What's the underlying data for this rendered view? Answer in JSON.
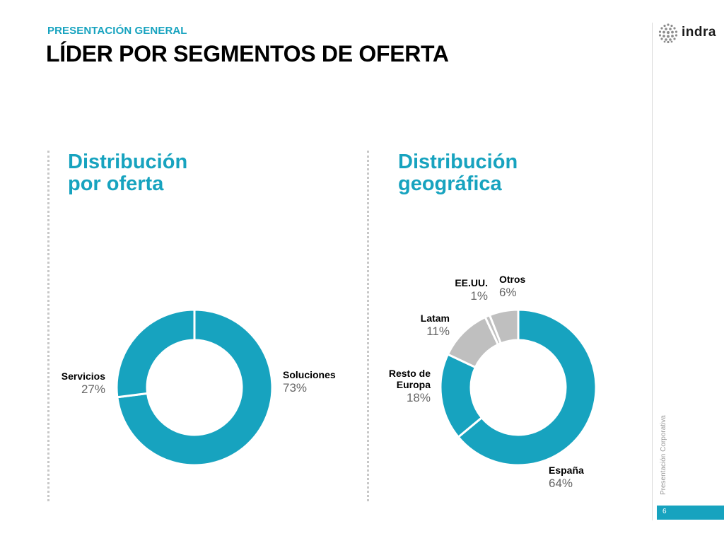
{
  "header": {
    "eyebrow": "PRESENTACIÓN GENERAL",
    "title": "LÍDER POR SEGMENTOS DE OFERTA"
  },
  "brand": {
    "name": "indra",
    "icon": "dotted-sphere-logo-icon"
  },
  "sidebar": {
    "vertical_label": "Presentación Corporativa",
    "page_number": "6"
  },
  "colors": {
    "accent": "#17a3bf",
    "segment_gray": "#bfbfbf",
    "label_value": "#666666"
  },
  "chart_data": [
    {
      "type": "pie",
      "variant": "donut",
      "title_lines": [
        "Distribución",
        "por oferta"
      ],
      "series": [
        {
          "label": "Soluciones",
          "value": 73,
          "display": "73%",
          "color": "#17a3bf"
        },
        {
          "label": "Servicios",
          "value": 27,
          "display": "27%",
          "color": "#17a3bf"
        }
      ]
    },
    {
      "type": "pie",
      "variant": "donut",
      "title_lines": [
        "Distribución",
        "geográfica"
      ],
      "series": [
        {
          "label": "España",
          "value": 64,
          "display": "64%",
          "color": "#17a3bf"
        },
        {
          "label": "Resto de Europa",
          "label_lines": [
            "Resto de",
            "Europa"
          ],
          "value": 18,
          "display": "18%",
          "color": "#17a3bf"
        },
        {
          "label": "Latam",
          "value": 11,
          "display": "11%",
          "color": "#bfbfbf"
        },
        {
          "label": "EE.UU.",
          "value": 1,
          "display": "1%",
          "color": "#bfbfbf"
        },
        {
          "label": "Otros",
          "value": 6,
          "display": "6%",
          "color": "#bfbfbf"
        }
      ]
    }
  ]
}
